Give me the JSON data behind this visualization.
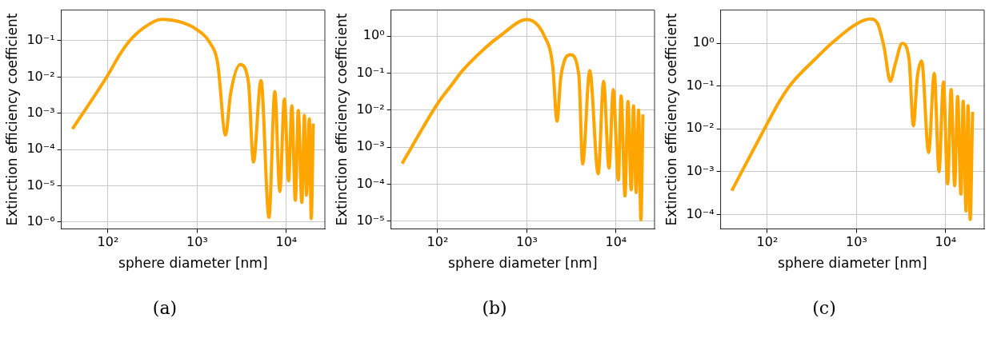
{
  "chart_data": [
    {
      "type": "line",
      "xlabel": "sphere diameter [nm]",
      "ylabel": "Extinction efficiency coefficient",
      "annotations": [
        "(a)"
      ],
      "log": "xy",
      "grid": true,
      "legend": false,
      "marker": "none",
      "line_style": "solid",
      "xlim": [
        30,
        27000
      ],
      "xticks": [
        {
          "value": 100,
          "label": "10²"
        },
        {
          "value": 1000,
          "label": "10³"
        },
        {
          "value": 10000,
          "label": "10⁴"
        }
      ],
      "ylim": [
        6.5e-07,
        0.7
      ],
      "yticks": [
        {
          "value": 1e-06,
          "label": "10⁻⁶"
        },
        {
          "value": 1e-05,
          "label": "10⁻⁵"
        },
        {
          "value": 0.0001,
          "label": "10⁻⁴"
        },
        {
          "value": 0.001,
          "label": "10⁻³"
        },
        {
          "value": 0.01,
          "label": "10⁻²"
        },
        {
          "value": 0.1,
          "label": "10⁻¹"
        }
      ],
      "series": [
        {
          "color": "#ffa500",
          "x": [
            40,
            100,
            136,
            187,
            330,
            398,
            680,
            1000,
            1385,
            1700,
            2080,
            2366,
            3035,
            3760,
            4270,
            5190,
            6380,
            7420,
            8440,
            9500,
            10600,
            11500,
            12600,
            13600,
            14900,
            15900,
            16800,
            18100,
            19000,
            20000
          ],
          "values": [
            0.00037,
            0.0114,
            0.042,
            0.12,
            0.34,
            0.39,
            0.32,
            0.2,
            0.089,
            0.023,
            0.00025,
            0.0034,
            0.022,
            0.007,
            4.5e-05,
            0.008,
            1.35e-06,
            0.004,
            6.9e-06,
            0.0025,
            1.35e-05,
            0.0016,
            4e-06,
            0.0012,
            3.5e-06,
            0.00087,
            5.5e-06,
            0.0007,
            1.25e-06,
            0.00052
          ]
        }
      ]
    },
    {
      "type": "line",
      "xlabel": "sphere diameter [nm]",
      "ylabel": "Extinction efficiency coefficient",
      "annotations": [
        "(b)"
      ],
      "log": "xy",
      "grid": true,
      "legend": false,
      "marker": "none",
      "line_style": "solid",
      "xlim": [
        30,
        27000
      ],
      "xticks": [
        {
          "value": 100,
          "label": "10²"
        },
        {
          "value": 1000,
          "label": "10³"
        },
        {
          "value": 10000,
          "label": "10⁴"
        }
      ],
      "ylim": [
        6.2e-06,
        5
      ],
      "yticks": [
        {
          "value": 1e-05,
          "label": "10⁻⁵"
        },
        {
          "value": 0.0001,
          "label": "10⁻⁴"
        },
        {
          "value": 0.001,
          "label": "10⁻³"
        },
        {
          "value": 0.01,
          "label": "10⁻²"
        },
        {
          "value": 0.1,
          "label": "10⁻¹"
        },
        {
          "value": 1,
          "label": "10⁰"
        }
      ],
      "series": [
        {
          "color": "#ffa500",
          "x": [
            40,
            100,
            138,
            190,
            350,
            500,
            1000,
            1570,
            1950,
            2180,
            2400,
            3090,
            3830,
            4220,
            5070,
            6310,
            7250,
            8340,
            9310,
            10600,
            11400,
            12600,
            13600,
            14800,
            15700,
            16800,
            17900,
            19000,
            20000
          ],
          "values": [
            0.00036,
            0.015,
            0.042,
            0.116,
            0.5,
            1,
            2.77,
            1,
            0.155,
            0.005,
            0.075,
            0.31,
            0.087,
            0.00035,
            0.116,
            0.00019,
            0.06,
            0.00027,
            0.036,
            0.00013,
            0.024,
            4.8e-05,
            0.017,
            7e-05,
            0.013,
            5.9e-05,
            0.01,
            1.1e-05,
            0.0076
          ]
        }
      ]
    },
    {
      "type": "line",
      "xlabel": "sphere diameter [nm]",
      "ylabel": "Extinction efficiency coefficient",
      "annotations": [
        "(c)"
      ],
      "log": "xy",
      "grid": true,
      "legend": false,
      "marker": "none",
      "line_style": "solid",
      "xlim": [
        30,
        27000
      ],
      "xticks": [
        {
          "value": 100,
          "label": "10²"
        },
        {
          "value": 1000,
          "label": "10³"
        },
        {
          "value": 10000,
          "label": "10⁴"
        }
      ],
      "ylim": [
        4.6e-05,
        6
      ],
      "yticks": [
        {
          "value": 0.0001,
          "label": "10⁻⁴"
        },
        {
          "value": 0.001,
          "label": "10⁻³"
        },
        {
          "value": 0.01,
          "label": "10⁻²"
        },
        {
          "value": 0.1,
          "label": "10⁻¹"
        },
        {
          "value": 1,
          "label": "10⁰"
        }
      ],
      "series": [
        {
          "color": "#ffa500",
          "x": [
            40,
            100,
            135,
            186,
            367,
            525,
            1000,
            1430,
            1710,
            2040,
            2390,
            2720,
            3250,
            3880,
            4340,
            4800,
            5370,
            6430,
            7440,
            8410,
            9430,
            10500,
            11500,
            12600,
            13600,
            14800,
            15700,
            16900,
            17800,
            18800,
            20000
          ],
          "values": [
            0.00036,
            0.0134,
            0.042,
            0.114,
            0.49,
            1,
            2.85,
            3.7,
            3,
            0.8,
            0.13,
            0.33,
            1,
            0.43,
            0.0118,
            0.16,
            0.39,
            0.0028,
            0.2,
            0.001,
            0.125,
            0.00052,
            0.083,
            0.00047,
            0.057,
            0.0003,
            0.044,
            0.00012,
            0.035,
            7.6e-05,
            0.025
          ]
        }
      ]
    }
  ]
}
